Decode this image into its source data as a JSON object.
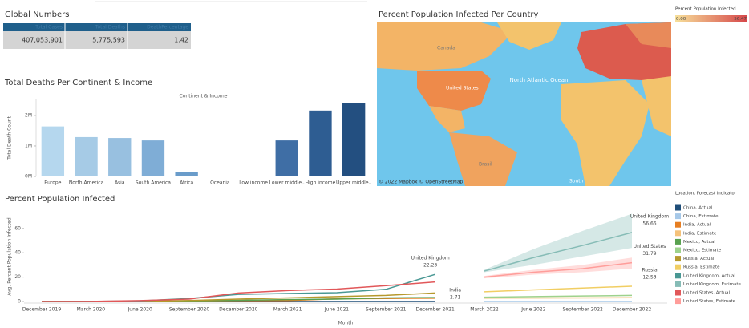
{
  "global_numbers": {
    "title": "Global Numbers",
    "headers": [
      "Total Cases",
      "Total Deaths",
      "DeathPercentage"
    ],
    "rows": [
      [
        "407,053,901",
        "5,775,593",
        "1.42"
      ]
    ]
  },
  "map": {
    "title": "Percent Population Infected Per Country",
    "legend_title": "Percent Population Infected",
    "legend_min": {
      "value": 0,
      "label": "0.00"
    },
    "legend_max": {
      "value": 56.47,
      "label": "56.47"
    },
    "legend_colors": [
      "#f7e09a",
      "#d6474a"
    ],
    "labels": [
      "Canada",
      "United States",
      "North Atlantic Ocean",
      "Brasil",
      "South"
    ],
    "attribution": "© 2022 Mapbox © OpenStreetMap"
  },
  "chart_data": [
    {
      "type": "bar",
      "title": "Total Deaths Per Continent & Income",
      "column_header": "Continent & Income",
      "y_label": "Total Death Count",
      "categories": [
        "Europe",
        "North America",
        "Asia",
        "South America",
        "Africa",
        "Oceania",
        "Low income",
        "Lower middle..",
        "High income",
        "Upper middle.."
      ],
      "values": [
        1640000,
        1290000,
        1260000,
        1180000,
        140000,
        10000,
        20000,
        1180000,
        2160000,
        2410000
      ],
      "colors": [
        "#b5d7ee",
        "#a6cbe6",
        "#98c0e0",
        "#7fadd6",
        "#6a9cca",
        "#5a8bbf",
        "#4d7db3",
        "#3f6ea5",
        "#2e5d92",
        "#234f80"
      ],
      "ylim": [
        0,
        2550000
      ],
      "yticks": [
        {
          "value": 0,
          "label": "0M"
        },
        {
          "value": 1000000,
          "label": "1M"
        },
        {
          "value": 2000000,
          "label": "2M"
        }
      ]
    },
    {
      "type": "line",
      "title": "Percent Population Infected",
      "y_label": "Avg. Percent Population Infected",
      "x_label": "Month",
      "legend_title": "Location, Forecast indicator",
      "x": [
        "December 2019",
        "March 2020",
        "June 2020",
        "September 2020",
        "December 2020",
        "March 2021",
        "June 2021",
        "September 2021",
        "December 2021",
        "March 2022",
        "June 2022",
        "September 2022",
        "December 2022"
      ],
      "ylim": [
        0,
        75
      ],
      "yticks": [
        0,
        20,
        40,
        60
      ],
      "series": [
        {
          "name": "China, Actual",
          "color": "#1f4e79",
          "values": [
            0,
            0,
            0,
            0,
            0,
            0,
            0,
            0,
            0.01,
            null,
            null,
            null,
            null
          ]
        },
        {
          "name": "China, Estimate",
          "color": "#a6c8e8",
          "values": [
            null,
            null,
            null,
            null,
            null,
            null,
            null,
            null,
            null,
            0.01,
            0.01,
            0.01,
            0.01
          ]
        },
        {
          "name": "India, Actual",
          "color": "#e67e22",
          "label": "India",
          "values": [
            0,
            0,
            0.05,
            0.4,
            0.7,
            0.8,
            2.2,
            2.5,
            2.71,
            null,
            null,
            null,
            null
          ],
          "value_labels": [
            null,
            null,
            null,
            null,
            null,
            null,
            null,
            null,
            "2.71",
            null,
            null,
            null,
            null
          ]
        },
        {
          "name": "India, Estimate",
          "color": "#f5c27a",
          "values": [
            null,
            null,
            null,
            null,
            null,
            null,
            null,
            null,
            null,
            2.8,
            2.9,
            3,
            3.1
          ]
        },
        {
          "name": "Mexico, Actual",
          "color": "#59a14f",
          "values": [
            0,
            0,
            0.1,
            0.5,
            1,
            1.6,
            2,
            3,
            3.2,
            null,
            null,
            null,
            null
          ]
        },
        {
          "name": "Mexico, Estimate",
          "color": "#9ed28c",
          "values": [
            null,
            null,
            null,
            null,
            null,
            null,
            null,
            null,
            null,
            3.5,
            4,
            4.5,
            5
          ]
        },
        {
          "name": "Russia, Actual",
          "color": "#b6992d",
          "values": [
            0,
            0,
            0.2,
            0.8,
            2,
            3,
            4,
            5,
            7,
            null,
            null,
            null,
            null
          ]
        },
        {
          "name": "Russia, Estimate",
          "color": "#f1ce63",
          "label": "Russia",
          "values": [
            null,
            null,
            null,
            null,
            null,
            null,
            null,
            null,
            null,
            8,
            9.5,
            11,
            12.53
          ],
          "value_labels": [
            null,
            null,
            null,
            null,
            null,
            null,
            null,
            null,
            null,
            null,
            null,
            null,
            "12.53"
          ]
        },
        {
          "name": "United Kingdom, Actual",
          "color": "#499894",
          "label": "United Kingdom",
          "values": [
            0,
            0.1,
            0.5,
            2.5,
            5.8,
            6.6,
            7.2,
            10,
            22.23,
            null,
            null,
            null,
            null
          ],
          "value_labels": [
            null,
            null,
            null,
            null,
            null,
            null,
            null,
            null,
            "22.23",
            null,
            null,
            null,
            null
          ]
        },
        {
          "name": "United Kingdom, Estimate",
          "color": "#86bcb6",
          "label": "United Kingdom",
          "values": [
            null,
            null,
            null,
            null,
            null,
            null,
            null,
            null,
            null,
            25,
            36,
            46,
            56.66
          ],
          "lower": [
            null,
            null,
            null,
            null,
            null,
            null,
            null,
            null,
            null,
            24,
            30,
            37,
            44
          ],
          "upper": [
            null,
            null,
            null,
            null,
            null,
            null,
            null,
            null,
            null,
            26,
            43,
            58,
            72
          ],
          "value_labels": [
            null,
            null,
            null,
            null,
            null,
            null,
            null,
            null,
            null,
            null,
            null,
            null,
            "56.66"
          ]
        },
        {
          "name": "United States, Actual",
          "color": "#e15759",
          "values": [
            0,
            0.1,
            0.7,
            2,
            7,
            9,
            10.2,
            13,
            16,
            null,
            null,
            null,
            null
          ]
        },
        {
          "name": "United States, Estimate",
          "color": "#ff9d9a",
          "label": "United States",
          "values": [
            null,
            null,
            null,
            null,
            null,
            null,
            null,
            null,
            null,
            20,
            24,
            27,
            31.79
          ],
          "lower": [
            null,
            null,
            null,
            null,
            null,
            null,
            null,
            null,
            null,
            19,
            22,
            24,
            27
          ],
          "upper": [
            null,
            null,
            null,
            null,
            null,
            null,
            null,
            null,
            null,
            21,
            26,
            30,
            36
          ],
          "value_labels": [
            null,
            null,
            null,
            null,
            null,
            null,
            null,
            null,
            null,
            null,
            null,
            null,
            "31.79"
          ]
        }
      ]
    }
  ]
}
